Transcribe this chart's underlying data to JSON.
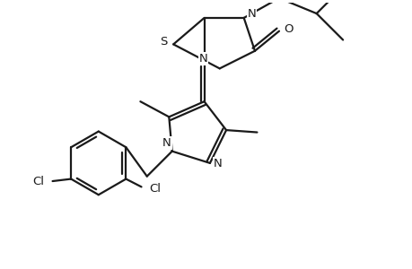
{
  "background_color": "#ffffff",
  "line_color": "#1a1a1a",
  "line_width": 1.6,
  "figsize": [
    4.6,
    3.0
  ],
  "dpi": 100,
  "xlim": [
    0,
    9.2
  ],
  "ylim": [
    0,
    6.0
  ]
}
